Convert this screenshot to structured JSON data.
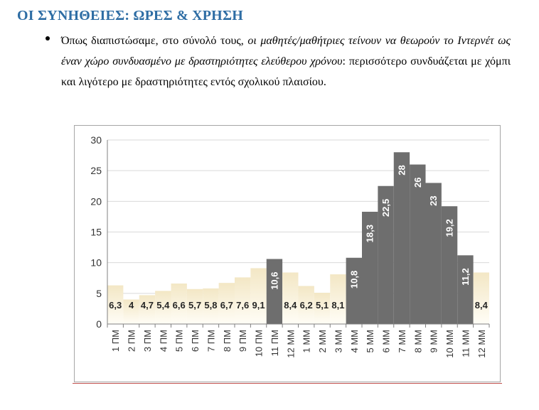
{
  "heading": "ΟΙ ΣΥΝΗΘΕΙΕΣ: ΩΡΕΣ & ΧΡΗΣΗ",
  "paragraph": {
    "intro": "Όπως διαπιστώσαμε, στο σύνολό τους, ",
    "emphasis": "οι μαθητές/μαθήτριες τείνουν να θεωρούν το Ιντερνέτ ως έναν χώρο συνδυασμένο με δραστηριότητες ελεύθερου χρόνου",
    "rest": ": περισσότερο συνδυάζεται με χόμπι και λιγότερο με δραστηριότητες εντός σχολικού πλαισίου."
  },
  "chart_data": {
    "type": "bar",
    "categories": [
      "1 ΠΜ",
      "2 ΠΜ",
      "3 ΠΜ",
      "4 ΠΜ",
      "5 ΠΜ",
      "6 ΠΜ",
      "7 ΠΜ",
      "8 ΠΜ",
      "9 ΠΜ",
      "10 ΠΜ",
      "11 ΠΜ",
      "12 ΜΜ",
      "1 ΜΜ",
      "2 ΜΜ",
      "3 ΜΜ",
      "4 ΜΜ",
      "5 ΜΜ",
      "6 ΜΜ",
      "7 ΜΜ",
      "8 ΜΜ",
      "9 ΜΜ",
      "10 ΜΜ",
      "11 ΜΜ",
      "12 ΜΜ"
    ],
    "values": [
      6.3,
      4,
      4.7,
      5.4,
      6.6,
      5.7,
      5.8,
      6.7,
      7.6,
      9.1,
      10.6,
      8.4,
      6.2,
      5.1,
      8.1,
      10.8,
      18.3,
      22.5,
      28,
      26,
      23,
      19.2,
      11.2,
      8.4
    ],
    "data_labels": [
      "6,3",
      "4",
      "4,7",
      "5,4",
      "6,6",
      "5,7",
      "5,8",
      "6,7",
      "7,6",
      "9,1",
      "10,6",
      "8,4",
      "6,2",
      "5,1",
      "8,1",
      "10,8",
      "18,3",
      "22,5",
      "28",
      "26",
      "23",
      "19,2",
      "11,2",
      "8,4"
    ],
    "highlighted": [
      false,
      false,
      false,
      false,
      false,
      false,
      false,
      false,
      false,
      false,
      true,
      false,
      false,
      false,
      false,
      true,
      true,
      true,
      true,
      true,
      true,
      true,
      true,
      false
    ],
    "yticks": [
      "0",
      "5",
      "10",
      "15",
      "20",
      "25",
      "30"
    ],
    "ylim": [
      0,
      30
    ],
    "grid": true,
    "legend": "none",
    "colors": {
      "normal_top": "#f3e7c5",
      "normal_bottom": "#fffdf6",
      "highlight": "#6e6e6e",
      "grid": "#d9d9d9",
      "axis": "#808080"
    }
  }
}
